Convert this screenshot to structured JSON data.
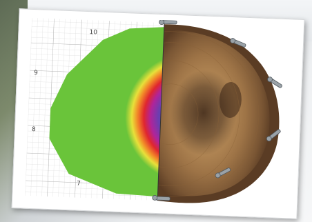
{
  "figure": {
    "grid_labels": [
      "10",
      "9",
      "8",
      "7"
    ],
    "colors": {
      "grid_line": "#c9c9c9",
      "grid_major": "#9a9a9a",
      "sound_ok": "#6ac43a",
      "transition": "#e8e03a",
      "weak": "#e0262e",
      "decay": "#7a2fa6",
      "core": "#5b4aa8",
      "wood_light": "#c9a26c",
      "wood_mid": "#a97c48",
      "wood_dark": "#4a3220",
      "bark": "#6a4a2e",
      "sensor_metal": "#9aa2a8"
    },
    "sensor_icons": [
      "sensor-nail-icon"
    ]
  }
}
